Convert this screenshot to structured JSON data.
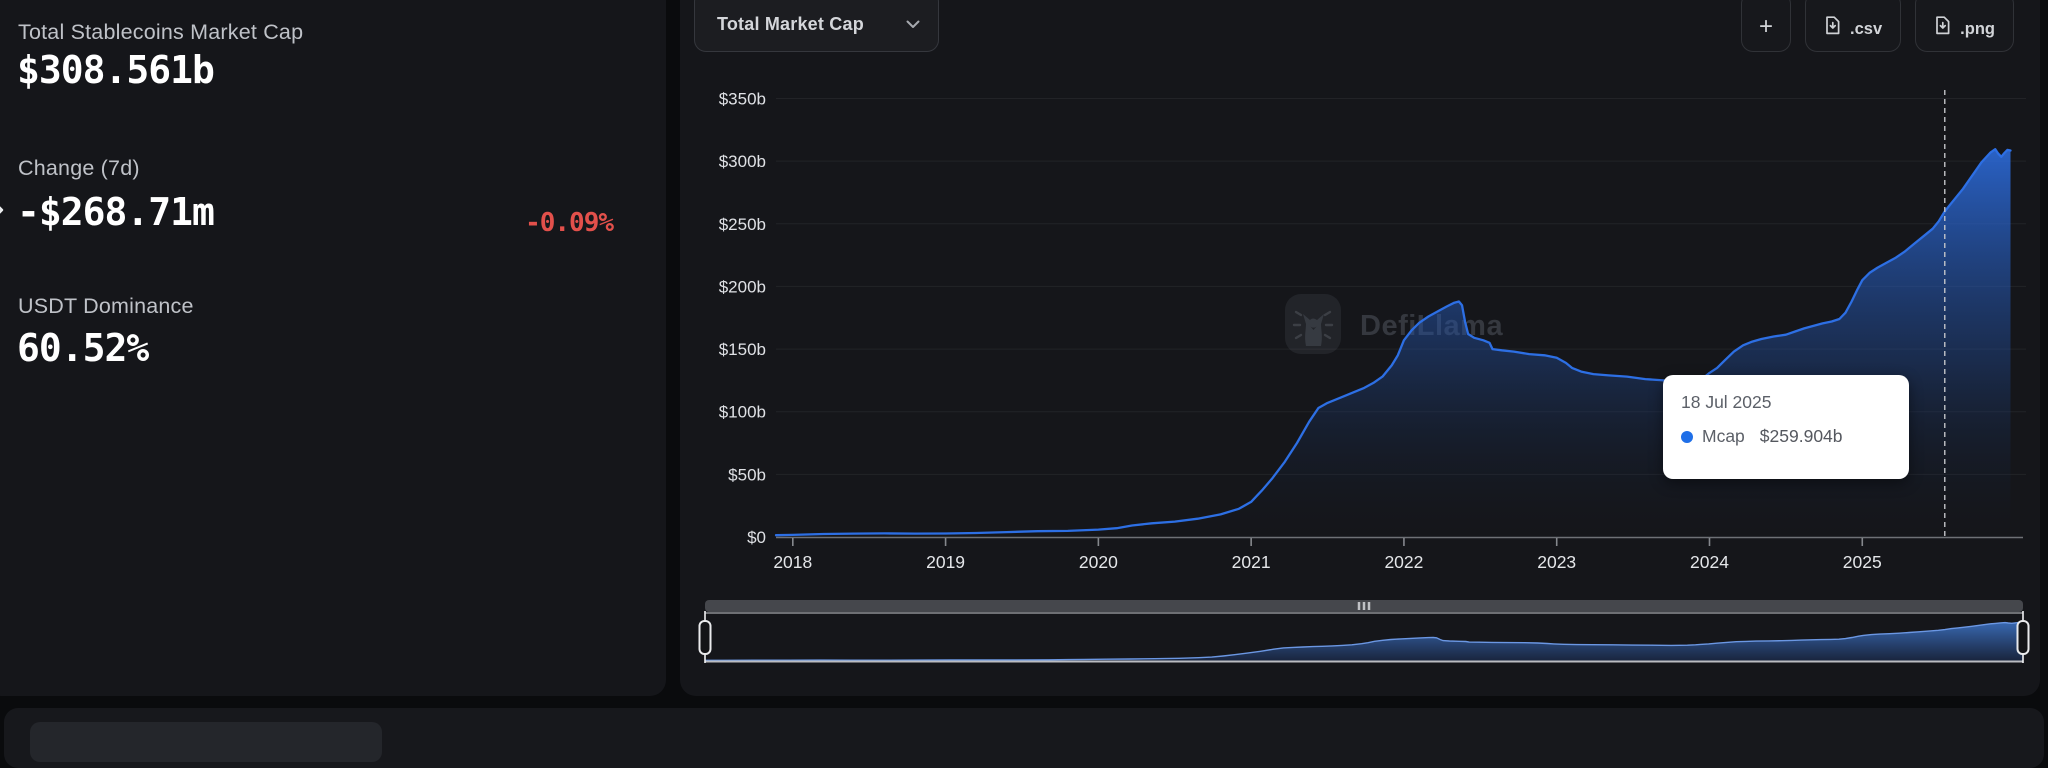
{
  "page": {
    "background": "#0a0b0d"
  },
  "stats_panel": {
    "items": [
      {
        "label": "Total Stablecoins Market Cap",
        "value": "$308.561b"
      },
      {
        "label": "Change (7d)",
        "value": "-$268.71m",
        "percent": "-0.09%",
        "percent_color": "#e2504b"
      },
      {
        "label": "USDT Dominance",
        "value": "60.52%"
      }
    ]
  },
  "chart_panel": {
    "metric_dropdown": {
      "label": "Total Market Cap"
    },
    "toolbar": {
      "add_label": "+",
      "csv_label": ".csv",
      "png_label": ".png"
    },
    "watermark": {
      "text": "DefiLlama"
    },
    "tooltip": {
      "date": "18 Jul 2025",
      "series": "Mcap",
      "value": "$259.904b",
      "dot_color": "#1f6fe8"
    }
  },
  "chart_data": {
    "type": "area",
    "title": "Total Market Cap",
    "unit": "USD billions",
    "line_color": "#2d6fe4",
    "ylim": [
      0,
      350
    ],
    "x_domain": [
      2017.89,
      2025.98
    ],
    "grid": "horizontal",
    "y_ticks": [
      {
        "v": 0,
        "label": "$0"
      },
      {
        "v": 50,
        "label": "$50b"
      },
      {
        "v": 100,
        "label": "$100b"
      },
      {
        "v": 150,
        "label": "$150b"
      },
      {
        "v": 200,
        "label": "$200b"
      },
      {
        "v": 250,
        "label": "$250b"
      },
      {
        "v": 300,
        "label": "$300b"
      },
      {
        "v": 350,
        "label": "$350b"
      }
    ],
    "x_ticks": [
      2018,
      2019,
      2020,
      2021,
      2022,
      2023,
      2024,
      2025
    ],
    "cursor": {
      "x_year": 2025.54,
      "style": "dashed",
      "date": "18 Jul 2025",
      "value_billions": 259.904
    },
    "brush": {
      "selected_range": [
        2017.89,
        2025.98
      ]
    },
    "series": [
      {
        "name": "Mcap",
        "color": "#2d6fe4",
        "points": [
          [
            2017.89,
            1.4
          ],
          [
            2018.0,
            1.7
          ],
          [
            2018.2,
            2.4
          ],
          [
            2018.4,
            2.7
          ],
          [
            2018.6,
            2.9
          ],
          [
            2018.8,
            2.7
          ],
          [
            2019.0,
            2.8
          ],
          [
            2019.2,
            3.2
          ],
          [
            2019.4,
            3.9
          ],
          [
            2019.6,
            4.6
          ],
          [
            2019.8,
            4.9
          ],
          [
            2020.0,
            5.9
          ],
          [
            2020.12,
            7.0
          ],
          [
            2020.22,
            9.2
          ],
          [
            2020.35,
            10.9
          ],
          [
            2020.5,
            12.3
          ],
          [
            2020.65,
            14.6
          ],
          [
            2020.8,
            18.0
          ],
          [
            2020.92,
            22.5
          ],
          [
            2021.0,
            28.0
          ],
          [
            2021.07,
            37
          ],
          [
            2021.14,
            47
          ],
          [
            2021.22,
            60
          ],
          [
            2021.3,
            75
          ],
          [
            2021.38,
            92
          ],
          [
            2021.44,
            103
          ],
          [
            2021.5,
            107
          ],
          [
            2021.56,
            110
          ],
          [
            2021.62,
            113
          ],
          [
            2021.68,
            116
          ],
          [
            2021.74,
            119
          ],
          [
            2021.8,
            123
          ],
          [
            2021.86,
            128
          ],
          [
            2021.92,
            137
          ],
          [
            2021.96,
            145
          ],
          [
            2022.0,
            157
          ],
          [
            2022.05,
            165
          ],
          [
            2022.1,
            171
          ],
          [
            2022.16,
            176
          ],
          [
            2022.22,
            180
          ],
          [
            2022.28,
            184
          ],
          [
            2022.33,
            187
          ],
          [
            2022.36,
            188
          ],
          [
            2022.38,
            185
          ],
          [
            2022.4,
            172
          ],
          [
            2022.42,
            162
          ],
          [
            2022.46,
            159
          ],
          [
            2022.52,
            157
          ],
          [
            2022.56,
            155
          ],
          [
            2022.58,
            150
          ],
          [
            2022.64,
            149
          ],
          [
            2022.72,
            148
          ],
          [
            2022.82,
            146
          ],
          [
            2022.92,
            145
          ],
          [
            2023.0,
            143
          ],
          [
            2023.06,
            139
          ],
          [
            2023.1,
            135
          ],
          [
            2023.16,
            132
          ],
          [
            2023.24,
            130
          ],
          [
            2023.34,
            129
          ],
          [
            2023.46,
            128
          ],
          [
            2023.58,
            126
          ],
          [
            2023.7,
            125
          ],
          [
            2023.82,
            123.5
          ],
          [
            2023.92,
            125
          ],
          [
            2023.97,
            128
          ],
          [
            2024.0,
            131
          ],
          [
            2024.05,
            135
          ],
          [
            2024.1,
            141
          ],
          [
            2024.16,
            148
          ],
          [
            2024.22,
            153
          ],
          [
            2024.28,
            156
          ],
          [
            2024.34,
            158
          ],
          [
            2024.42,
            160
          ],
          [
            2024.5,
            161.5
          ],
          [
            2024.56,
            164
          ],
          [
            2024.62,
            166.5
          ],
          [
            2024.68,
            168.5
          ],
          [
            2024.74,
            170.5
          ],
          [
            2024.8,
            172
          ],
          [
            2024.85,
            174
          ],
          [
            2024.89,
            179
          ],
          [
            2024.93,
            188
          ],
          [
            2024.97,
            198
          ],
          [
            2025.0,
            205
          ],
          [
            2025.05,
            211
          ],
          [
            2025.1,
            215
          ],
          [
            2025.16,
            219
          ],
          [
            2025.22,
            223
          ],
          [
            2025.28,
            228
          ],
          [
            2025.34,
            234
          ],
          [
            2025.4,
            240
          ],
          [
            2025.46,
            246
          ],
          [
            2025.5,
            252
          ],
          [
            2025.54,
            259.9
          ],
          [
            2025.58,
            266
          ],
          [
            2025.62,
            272
          ],
          [
            2025.66,
            278
          ],
          [
            2025.7,
            285
          ],
          [
            2025.74,
            292
          ],
          [
            2025.78,
            299
          ],
          [
            2025.81,
            303
          ],
          [
            2025.84,
            307
          ],
          [
            2025.87,
            309.5
          ],
          [
            2025.89,
            306
          ],
          [
            2025.91,
            303.5
          ],
          [
            2025.93,
            306.5
          ],
          [
            2025.95,
            309
          ],
          [
            2025.97,
            308.5
          ]
        ]
      }
    ]
  }
}
